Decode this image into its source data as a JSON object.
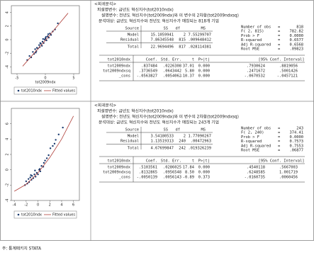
{
  "panels": [
    {
      "chart": {
        "type": "scatter",
        "xlim": [
          -6,
          6
        ],
        "ylim": [
          -5,
          5
        ],
        "xticks": [
          -5,
          0,
          5
        ],
        "yticks": [
          -4,
          -2,
          0,
          2,
          4
        ],
        "xlabel": "tot2009ndx",
        "series": [
          {
            "name": "tot2010ndx",
            "color": "#1a3a6e",
            "x": [
              -3.2,
              -2.8,
              -2.5,
              -2.2,
              -2,
              -1.8,
              -1.6,
              -1.5,
              -1.3,
              -1.1,
              -1,
              -0.8,
              -0.6,
              -0.5,
              -0.3,
              -0.1,
              0,
              0.2,
              0.4,
              0.6,
              0.8,
              1,
              1.3,
              1.7,
              2.2,
              -0.9,
              -0.4,
              0.1,
              -1.7,
              0.5
            ],
            "y": [
              -3,
              -2.4,
              -2.6,
              -1.8,
              -2.1,
              -1.4,
              -1.7,
              -1.2,
              -1.3,
              -0.8,
              -1.1,
              -0.6,
              -0.9,
              -0.3,
              -0.5,
              0,
              0.2,
              -0.1,
              0.5,
              0.3,
              0.9,
              0.7,
              1.2,
              1.5,
              2.4,
              -0.5,
              0.1,
              0.4,
              -1.9,
              0.8
            ]
          },
          {
            "name": "Fitted values",
            "color": "#b0403a",
            "x": [
              -4,
              -2,
              0,
              2,
              4
            ],
            "y": [
              -3.9,
              -2,
              -0.1,
              1.9,
              3.9
            ]
          }
        ]
      },
      "heading": "<회귀분석>",
      "dep": "피설명변수: 금년도 혁신지수(tot2010ndx)",
      "indep": "설명변수: 전년도 혁신지수(tot2009ndx)와 이 변수의 2차항(tot2009ndxsq)",
      "sample": "분석대상: 금년도 혁신지수와 전년도 혁신지수가 매칭되는 818개 기업",
      "anova": {
        "header": [
          "Source",
          "SS",
          "df",
          "MS"
        ],
        "rows": [
          [
            "Model",
            "15.1059941",
            "2",
            "7.55299707"
          ],
          [
            "Residual",
            "7.86345548",
            "815",
            ".009648412"
          ],
          [
            "Total",
            "22.9694496",
            "817",
            ".028114381"
          ]
        ]
      },
      "stats": [
        [
          "Number of obs",
          "=",
          "818"
        ],
        [
          "F(  2,   815)",
          "=",
          "782.82"
        ],
        [
          "Prob > F",
          "=",
          "0.0000"
        ],
        [
          "R-squared",
          "=",
          "0.6577"
        ],
        [
          "Adj R-squared",
          "=",
          "0.6568"
        ],
        [
          "Root MSE",
          "=",
          ".09823"
        ]
      ],
      "coef": {
        "header": [
          "tot2010ndx",
          "Coef.",
          "Std. Err.",
          "t",
          "P>|t|",
          "[95% Conf. Interval]"
        ],
        "rows": [
          [
            "tot2009ndx",
            ".837484",
            ".0226308",
            "37.01",
            "0.000",
            ".7930624",
            ".8819056"
          ],
          [
            "tot2009ndxsq",
            ".3736549",
            ".0643442",
            "5.80",
            "0.000",
            ".2471672",
            ".5001426"
          ],
          [
            "_cons",
            "-.0563827",
            ".0054062",
            "-10.37",
            "0.000",
            "-.0670532",
            "-.0457121"
          ]
        ]
      }
    },
    {
      "chart": {
        "type": "scatter",
        "xlim": [
          -4.5,
          7
        ],
        "ylim": [
          -4,
          8
        ],
        "xticks": [
          -4,
          -2,
          0,
          2,
          4,
          6
        ],
        "yticks": [
          -4,
          -2,
          0,
          2,
          4,
          6
        ],
        "series": [
          {
            "name": "tot2010ndx",
            "color": "#1a3a6e",
            "x": [
              -2.2,
              -2,
              -1.8,
              -1.6,
              -1.5,
              -1.3,
              -1.1,
              -1,
              -0.8,
              -0.6,
              -0.4,
              -0.2,
              0,
              0.2,
              0.4,
              0.6,
              0.9,
              1.2,
              1.5,
              1.8,
              2.1,
              2.5,
              3,
              3.5,
              4.2,
              -1.2,
              -0.5,
              0.3,
              1,
              2.8
            ],
            "y": [
              -2,
              -1.5,
              -1.8,
              -1.2,
              -1.6,
              -1,
              -1.3,
              -0.8,
              -1.1,
              -0.6,
              -0.9,
              -0.4,
              -0.6,
              0,
              -0.2,
              0.5,
              0.4,
              1.2,
              1.5,
              1.9,
              2.8,
              3.1,
              3.9,
              4.6,
              5.5,
              -0.7,
              -0.1,
              0.1,
              0.9,
              3.4
            ]
          },
          {
            "name": "Fitted values",
            "color": "#b0403a",
            "x": [
              -4,
              -2,
              0,
              2,
              4,
              6
            ],
            "y": [
              -2.8,
              -1.9,
              -0.4,
              1.6,
              4,
              7
            ]
          }
        ]
      },
      "heading": "<회귀분석>",
      "dep": "피설명변수: 금년도 혁신지수(tot2010ndx)",
      "indep": "설명변수: 전년도 혁신지수(tot2009ndx)와 이 변수의 2차항(tot2009ndxsq)",
      "sample": "분석대상: 금년도 혁신지수와 전년도 혁신지수가 매칭되는 243개 기업",
      "anova": {
        "header": [
          "Source",
          "SS",
          "df",
          "MS"
        ],
        "rows": [
          [
            "Model",
            "3.54180533",
            "2",
            "1.77090267"
          ],
          [
            "Residual",
            "1.13519313",
            "240",
            ".00472963"
          ],
          [
            "Total",
            "4.67699847",
            "242",
            ".019326239"
          ]
        ]
      },
      "stats": [
        [
          "Number of obs",
          "=",
          "243"
        ],
        [
          "F(  2,   240)",
          "=",
          "374.41"
        ],
        [
          "Prob > F",
          "=",
          "0.0000"
        ],
        [
          "R-squared",
          "=",
          "0.7573"
        ],
        [
          "Adj R-squared",
          "=",
          "0.7553"
        ],
        [
          "Root MSE",
          "=",
          ".06877"
        ]
      ],
      "coef": {
        "header": [
          "tot2010ndx",
          "Coef.",
          "Std. Err.",
          "t",
          "P>|t|",
          "[95% Conf. Interval]"
        ],
        "rows": [
          [
            "tot2009ndx",
            ".5103561",
            ".0286025",
            "17.84",
            "0.000",
            ".4540118",
            ".5667003"
          ],
          [
            "tot2009ndxsq",
            ".8132865",
            ".0956548",
            "8.50",
            "0.000",
            ".6248585",
            "1.001719"
          ],
          [
            "_cons",
            "-.0050139",
            ".0056143",
            "-0.89",
            "0.373",
            "-.0160735",
            ".0060456"
          ]
        ]
      }
    }
  ],
  "footer": "주: 통계패키지 STATA"
}
